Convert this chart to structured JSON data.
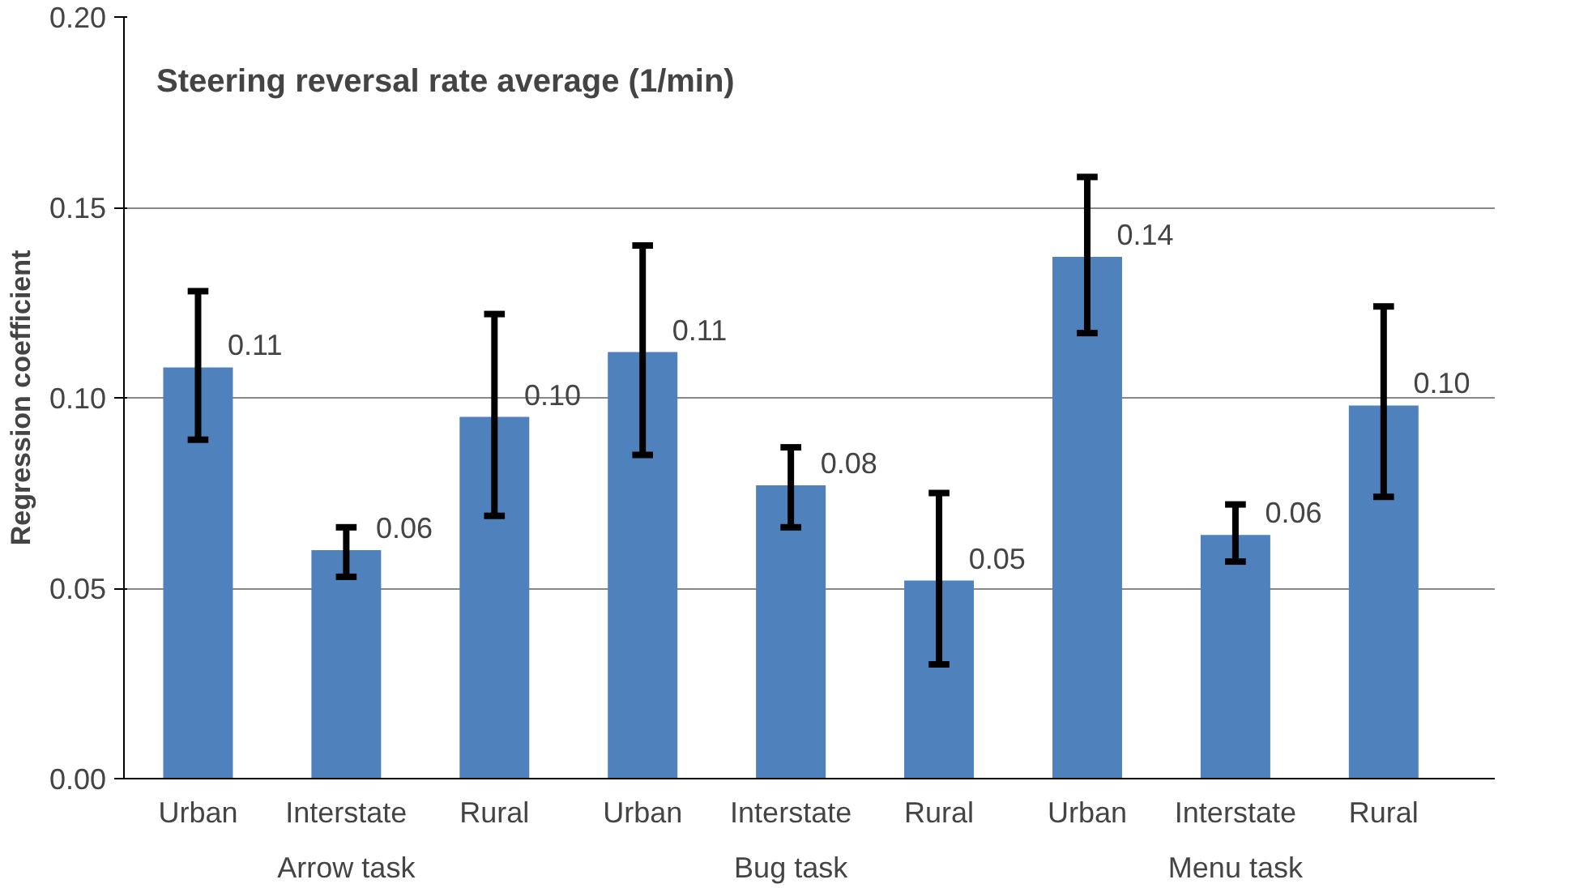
{
  "chart_data": {
    "type": "bar",
    "title": "Steering reversal rate average (1/min)",
    "ylabel": "Regression coefficient",
    "categories": [
      "Urban",
      "Interstate",
      "Rural",
      "Urban",
      "Interstate",
      "Rural",
      "Urban",
      "Interstate",
      "Rural"
    ],
    "annotations": [
      "Arrow task",
      "Bug task",
      "Menu task"
    ],
    "values": [
      0.108,
      0.06,
      0.095,
      0.112,
      0.077,
      0.052,
      0.137,
      0.064,
      0.098
    ],
    "errors": [
      [
        0.089,
        0.128
      ],
      [
        0.053,
        0.066
      ],
      [
        0.069,
        0.122
      ],
      [
        0.085,
        0.14
      ],
      [
        0.066,
        0.087
      ],
      [
        0.03,
        0.075
      ],
      [
        0.117,
        0.158
      ],
      [
        0.057,
        0.072
      ],
      [
        0.074,
        0.124
      ]
    ],
    "value_labels": [
      "0.11",
      "0.06",
      "0.10",
      "0.11",
      "0.08",
      "0.05",
      "0.14",
      "0.06",
      "0.10"
    ],
    "color": "#4f81bd",
    "ylim": [
      0,
      0.2
    ],
    "yticks": [
      {
        "value": 0,
        "label": "0.00"
      },
      {
        "value": 0.05,
        "label": "0.05"
      },
      {
        "value": 0.1,
        "label": "0.10"
      },
      {
        "value": 0.15,
        "label": "0.15"
      },
      {
        "value": 0.2,
        "label": "0.20"
      }
    ],
    "grid": "y"
  }
}
